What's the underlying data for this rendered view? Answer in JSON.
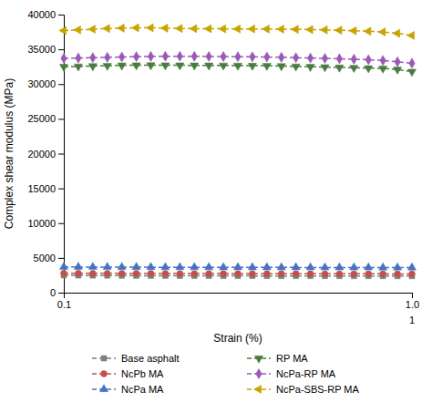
{
  "chart_data": {
    "type": "line",
    "xlabel": "Strain (%)",
    "ylabel": "Complex shear modulus (MPa)",
    "log": "x",
    "grid": false,
    "legend": "bottom",
    "xlim": [
      0.1,
      1.0
    ],
    "ylim": [
      0,
      40000
    ],
    "xticks": [
      0.1,
      {
        "value": 1.0,
        "label": "1.0"
      }
    ],
    "yticks": [
      0,
      5000,
      10000,
      15000,
      20000,
      25000,
      30000,
      35000,
      40000
    ],
    "annotations": [
      {
        "text": "1",
        "x": 1.0
      }
    ],
    "x": [
      0.1,
      0.1100694,
      0.1211528,
      0.1333521,
      0.1467799,
      0.1615598,
      0.1778279,
      0.1957341,
      0.2154435,
      0.2371374,
      0.2610157,
      0.2872984,
      0.3162278,
      0.34807,
      0.3831187,
      0.4216965,
      0.4641589,
      0.5108969,
      0.5623413,
      0.6189657,
      0.6812921,
      0.7498942,
      0.8254042,
      0.9085175,
      1.0
    ],
    "series": [
      {
        "name": "Base asphalt",
        "color": "#7f7f7f",
        "marker": "square",
        "line_style": "dashed",
        "values": [
          2500,
          2480,
          2470,
          2460,
          2450,
          2440,
          2435,
          2430,
          2425,
          2420,
          2418,
          2415,
          2412,
          2410,
          2408,
          2406,
          2404,
          2402,
          2400,
          2398,
          2396,
          2394,
          2392,
          2390,
          2388
        ]
      },
      {
        "name": "NcPb MA",
        "color": "#c0504d",
        "marker": "circle",
        "line_style": "dashed",
        "values": [
          2800,
          2790,
          2782,
          2775,
          2768,
          2762,
          2757,
          2753,
          2749,
          2745,
          2742,
          2739,
          2736,
          2733,
          2730,
          2727,
          2724,
          2721,
          2718,
          2715,
          2712,
          2709,
          2706,
          2703,
          2700
        ]
      },
      {
        "name": "NcPa MA",
        "color": "#4472c4",
        "marker": "triangle-up",
        "line_style": "dashed",
        "values": [
          3700,
          3690,
          3682,
          3675,
          3668,
          3662,
          3657,
          3652,
          3648,
          3644,
          3641,
          3638,
          3635,
          3632,
          3629,
          3626,
          3623,
          3620,
          3617,
          3614,
          3611,
          3608,
          3605,
          3602,
          3600
        ]
      },
      {
        "name": "RP MA",
        "color": "#4a7c3f",
        "marker": "triangle-down",
        "line_style": "dashed",
        "values": [
          32500,
          32550,
          32600,
          32650,
          32700,
          32720,
          32730,
          32720,
          32710,
          32700,
          32690,
          32680,
          32670,
          32660,
          32650,
          32600,
          32550,
          32500,
          32450,
          32400,
          32350,
          32300,
          32250,
          32100,
          31800
        ]
      },
      {
        "name": "NcPa-RP MA",
        "color": "#9b59b6",
        "marker": "diamond",
        "line_style": "dashed",
        "values": [
          33700,
          33750,
          33800,
          33850,
          33900,
          33950,
          33980,
          34000,
          34000,
          33990,
          33980,
          33960,
          33940,
          33920,
          33900,
          33850,
          33800,
          33750,
          33700,
          33650,
          33580,
          33500,
          33400,
          33200,
          33000
        ]
      },
      {
        "name": "NcPa-SBS-RP MA",
        "color": "#c8a400",
        "marker": "triangle-left",
        "line_style": "dashed",
        "values": [
          37700,
          37800,
          37900,
          38000,
          38050,
          38100,
          38100,
          38050,
          38000,
          37980,
          37960,
          37950,
          37940,
          37930,
          37920,
          37900,
          37880,
          37850,
          37800,
          37750,
          37680,
          37600,
          37500,
          37300,
          37000
        ]
      }
    ]
  }
}
